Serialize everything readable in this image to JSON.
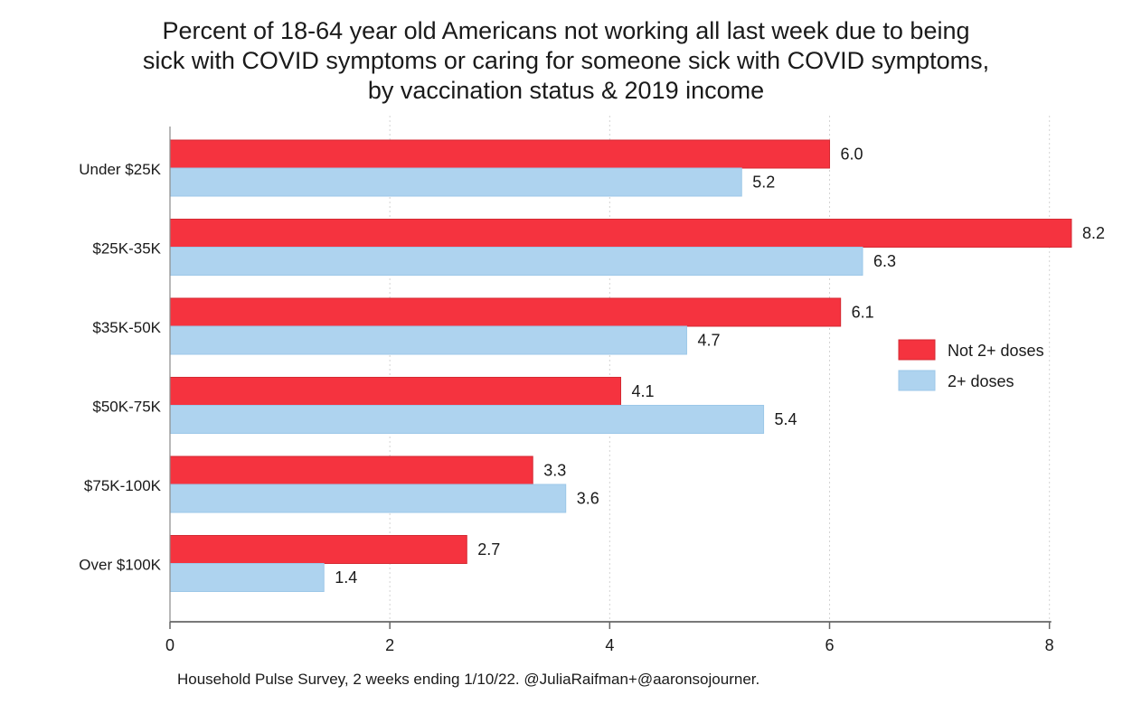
{
  "chart_data": {
    "type": "bar",
    "orientation": "horizontal",
    "title_lines": [
      "Percent of 18-64 year old Americans not working all last week due to being",
      "sick with COVID symptoms or caring for someone sick with COVID symptoms,",
      "by vaccination status & 2019 income"
    ],
    "categories": [
      "Under $25K",
      "$25K-35K",
      "$35K-50K",
      "$50K-75K",
      "$75K-100K",
      "Over $100K"
    ],
    "series": [
      {
        "name": "Not 2+ doses",
        "values": [
          6.0,
          8.2,
          6.1,
          4.1,
          3.3,
          2.7
        ],
        "labels": [
          "6.0",
          "8.2",
          "6.1",
          "4.1",
          "3.3",
          "2.7"
        ],
        "color": "#f5333f"
      },
      {
        "name": "2+ doses",
        "values": [
          5.2,
          6.3,
          4.7,
          5.4,
          3.6,
          1.4
        ],
        "labels": [
          "5.2",
          "6.3",
          "4.7",
          "5.4",
          "3.6",
          "1.4"
        ],
        "color": "#aed3ef"
      }
    ],
    "xlim": [
      0,
      8.2
    ],
    "xticks": [
      0,
      2,
      4,
      6,
      8
    ],
    "xtick_labels": [
      "0",
      "2",
      "4",
      "6",
      "8"
    ],
    "grid": true,
    "legend_position": "right"
  },
  "source_note": "Household Pulse Survey, 2 weeks ending 1/10/22. @JuliaRaifman+@aaronsojourner."
}
